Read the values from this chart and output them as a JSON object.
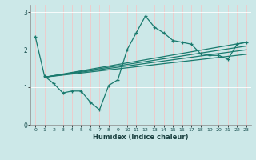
{
  "xlabel": "Humidex (Indice chaleur)",
  "xlim": [
    -0.5,
    23.5
  ],
  "ylim": [
    0,
    3.2
  ],
  "xticks": [
    0,
    1,
    2,
    3,
    4,
    5,
    6,
    7,
    8,
    9,
    10,
    11,
    12,
    13,
    14,
    15,
    16,
    17,
    18,
    19,
    20,
    21,
    22,
    23
  ],
  "yticks": [
    0,
    1,
    2,
    3
  ],
  "bg_color": "#cce8e8",
  "line_color": "#1a7a6e",
  "grid_color": "#f0c8c8",
  "series": {
    "volatile": {
      "x": [
        0,
        1,
        2,
        3,
        4,
        5,
        6,
        7,
        8,
        9,
        10,
        11,
        12,
        13,
        14,
        15,
        16,
        17,
        18,
        19,
        20,
        21,
        22,
        23
      ],
      "y": [
        2.35,
        1.3,
        1.1,
        0.85,
        0.9,
        0.9,
        0.6,
        0.4,
        1.05,
        1.2,
        2.0,
        2.45,
        2.9,
        2.6,
        2.45,
        2.25,
        2.2,
        2.15,
        1.9,
        1.85,
        1.85,
        1.75,
        2.15,
        2.2
      ]
    },
    "linear1": {
      "x": [
        1,
        23
      ],
      "y": [
        1.27,
        2.2
      ]
    },
    "linear2": {
      "x": [
        1,
        23
      ],
      "y": [
        1.27,
        2.1
      ]
    },
    "linear3": {
      "x": [
        1,
        23
      ],
      "y": [
        1.27,
        2.0
      ]
    },
    "linear4": {
      "x": [
        1,
        23
      ],
      "y": [
        1.27,
        1.88
      ]
    }
  }
}
